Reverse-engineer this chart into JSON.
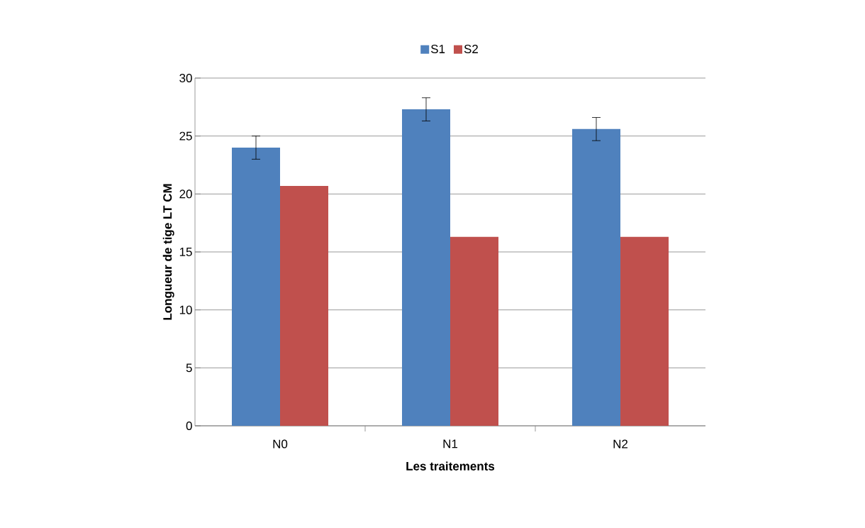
{
  "chart_data": {
    "type": "bar",
    "xlabel": "Les traitements",
    "ylabel": "Longueur de tige LT CM",
    "categories": [
      "N0",
      "N1",
      "N2"
    ],
    "series": [
      {
        "name": "S1",
        "color": "#4f81bd",
        "values": [
          24.0,
          27.3,
          25.6
        ],
        "errors": [
          1,
          1,
          1
        ]
      },
      {
        "name": "S2",
        "color": "#c0504d",
        "values": [
          20.7,
          16.3,
          16.3
        ]
      }
    ],
    "ylim": [
      0,
      30
    ],
    "yticks": [
      0,
      5,
      10,
      15,
      20,
      25,
      30
    ],
    "grid": "y",
    "legend": "top"
  }
}
